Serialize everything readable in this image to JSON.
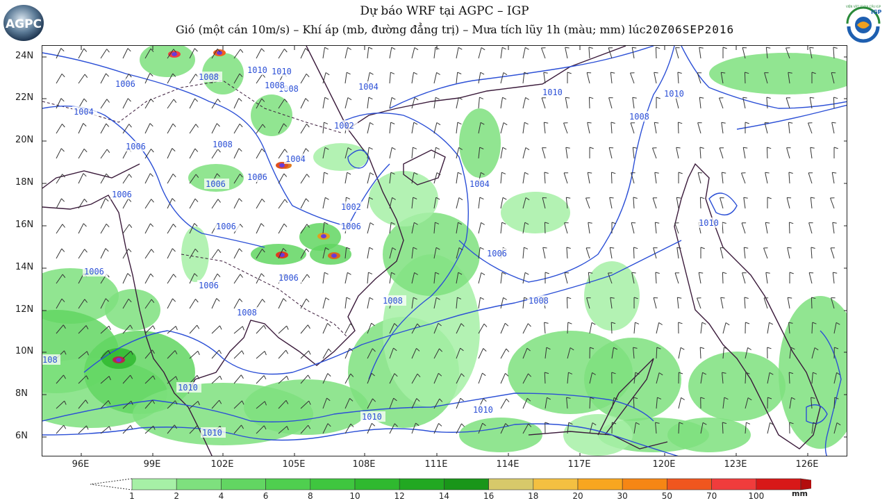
{
  "header": {
    "title": "Dự báo WRF tại AGPC – IGP",
    "subtitle": "Gió (một cán 10m/s) – Khí áp (mb, đường đẳng trị) – Mưa tích lũy 1h (màu; mm) lúc",
    "timestamp": "20Z06SEP2016"
  },
  "logos": {
    "left": "AGPC",
    "right": "VIỆN VẬT LÝ ĐỊA CẦU IGP"
  },
  "axes": {
    "y_labels": [
      "24N",
      "22N",
      "20N",
      "18N",
      "16N",
      "14N",
      "12N",
      "10N",
      "8N",
      "6N"
    ],
    "x_labels": [
      "96E",
      "99E",
      "102E",
      "105E",
      "108E",
      "111E",
      "114E",
      "117E",
      "120E",
      "123E",
      "126E"
    ]
  },
  "isobar_labels": [
    {
      "text": "1008"
    },
    {
      "text": "1006"
    },
    {
      "text": "1004"
    },
    {
      "text": "1010"
    },
    {
      "text": "1008"
    },
    {
      "text": "1004"
    },
    {
      "text": "1006"
    },
    {
      "text": "1010"
    },
    {
      "text": "1008"
    },
    {
      "text": "1008"
    },
    {
      "text": "1002"
    },
    {
      "text": "1006"
    },
    {
      "text": "1004"
    },
    {
      "text": "1006"
    },
    {
      "text": "1006"
    },
    {
      "text": "1004"
    },
    {
      "text": "1006"
    },
    {
      "text": "1002"
    },
    {
      "text": "1006"
    },
    {
      "text": "1006"
    },
    {
      "text": "1010"
    },
    {
      "text": "1006"
    },
    {
      "text": "1006"
    },
    {
      "text": "1006"
    },
    {
      "text": "1008"
    },
    {
      "text": "1008"
    },
    {
      "text": "1008"
    },
    {
      "text": "1008"
    },
    {
      "text": "108"
    },
    {
      "text": "1010"
    },
    {
      "text": "1010"
    },
    {
      "text": "1010"
    },
    {
      "text": "1010"
    },
    {
      "text": "1010"
    },
    {
      "text": "1010"
    }
  ],
  "colorbar": {
    "unit": "mm",
    "ticks": [
      "1",
      "2",
      "4",
      "6",
      "8",
      "10",
      "12",
      "14",
      "16",
      "18",
      "20",
      "30",
      "50",
      "70",
      "100"
    ],
    "colors": [
      "#a6f0a6",
      "#7ee07e",
      "#62d662",
      "#4fcf4f",
      "#3fc63f",
      "#2fb92f",
      "#22a822",
      "#199619",
      "#d7c96a",
      "#f4c041",
      "#f8a61f",
      "#f68614",
      "#f0561e",
      "#f03c3c",
      "#d81818",
      "#b30e0e"
    ]
  },
  "colors": {
    "isobar": "#2b4fd6",
    "coast": "#3a1a3a",
    "barb": "#333333",
    "rain_light": "#7ddc7d"
  }
}
